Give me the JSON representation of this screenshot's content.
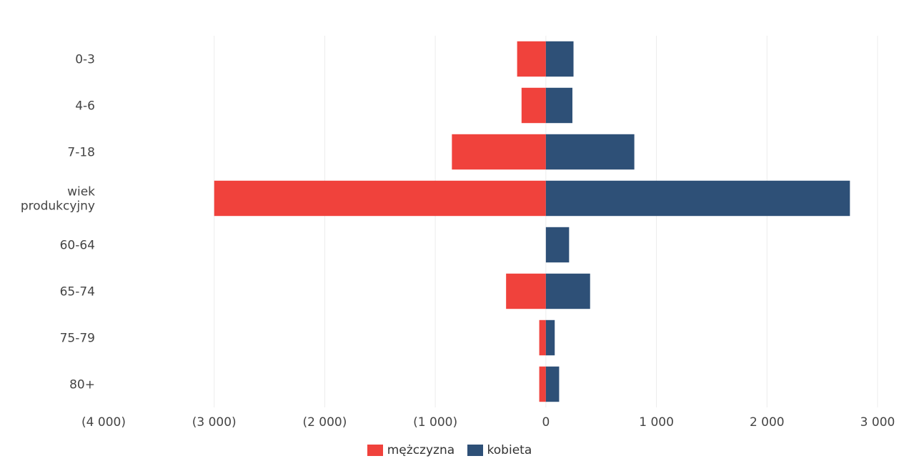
{
  "chart_data": {
    "type": "bar",
    "orientation": "horizontal",
    "stacked": "diverging",
    "title": "",
    "categories": [
      "0-3",
      "4-6",
      "7-18",
      "wiek produkcyjny",
      "60-64",
      "65-74",
      "75-79",
      "80+"
    ],
    "series": [
      {
        "name": "mężczyzna",
        "color": "#f0423c",
        "values": [
          -260,
          -220,
          -850,
          -3000,
          0,
          -360,
          -60,
          -60
        ]
      },
      {
        "name": "kobieta",
        "color": "#2e5077",
        "values": [
          250,
          240,
          800,
          2750,
          210,
          400,
          80,
          120
        ]
      }
    ],
    "xlim": [
      -4000,
      3000
    ],
    "x_ticks": [
      -4000,
      -3000,
      -2000,
      -1000,
      0,
      1000,
      2000,
      3000
    ],
    "x_tick_labels": [
      "(4 000)",
      "(3 000)",
      "(2 000)",
      "(1 000)",
      "0",
      "1 000",
      "2 000",
      "3 000"
    ],
    "grid": true,
    "legend_position": "bottom"
  }
}
